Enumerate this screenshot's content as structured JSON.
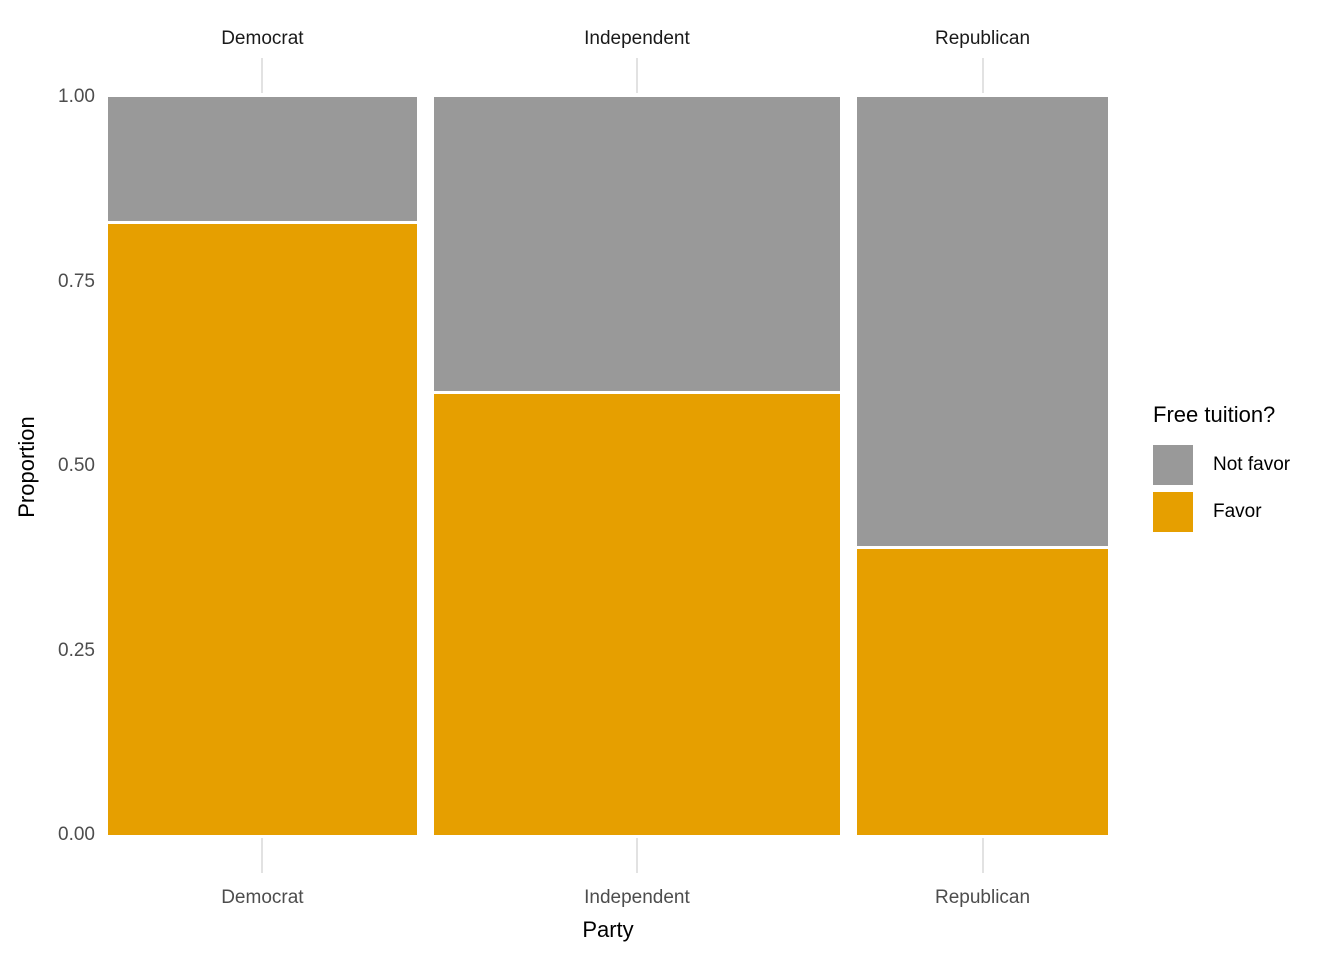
{
  "page": {
    "background": "#ffffff"
  },
  "chart_data": {
    "type": "bar",
    "variant": "mosaic (proportionally-sized stacked bars)",
    "title": "",
    "xlabel": "Party",
    "ylabel": "Proportion",
    "categories": [
      "Democrat",
      "Independent",
      "Republican"
    ],
    "group_weights": [
      0.32,
      0.42,
      0.26
    ],
    "series": [
      {
        "name": "Not favor",
        "color": "#999999",
        "values": [
          0.17,
          0.4,
          0.61
        ]
      },
      {
        "name": "Favor",
        "color": "#E69F00",
        "values": [
          0.83,
          0.6,
          0.39
        ]
      }
    ],
    "stack_order_bottom_to_top": [
      "Favor",
      "Not favor"
    ],
    "y_ticks": [
      "0.00",
      "0.25",
      "0.50",
      "0.75",
      "1.00"
    ],
    "ylim": [
      0,
      1
    ],
    "grid": false,
    "top_axis_labels": [
      "Democrat",
      "Independent",
      "Republican"
    ],
    "bottom_axis_labels": [
      "Democrat",
      "Independent",
      "Republican"
    ],
    "legend": {
      "title": "Free tuition?",
      "position": "right",
      "entries": [
        {
          "label": "Not favor",
          "color": "#999999"
        },
        {
          "label": "Favor",
          "color": "#E69F00"
        }
      ]
    },
    "style_colors": {
      "axis_text": "#4D4D4D",
      "top_axis_text": "#1A1A1A",
      "title_text": "#000000",
      "tick_mark": "#E2E2E2",
      "segment_divider": "#FFFFFF"
    }
  }
}
